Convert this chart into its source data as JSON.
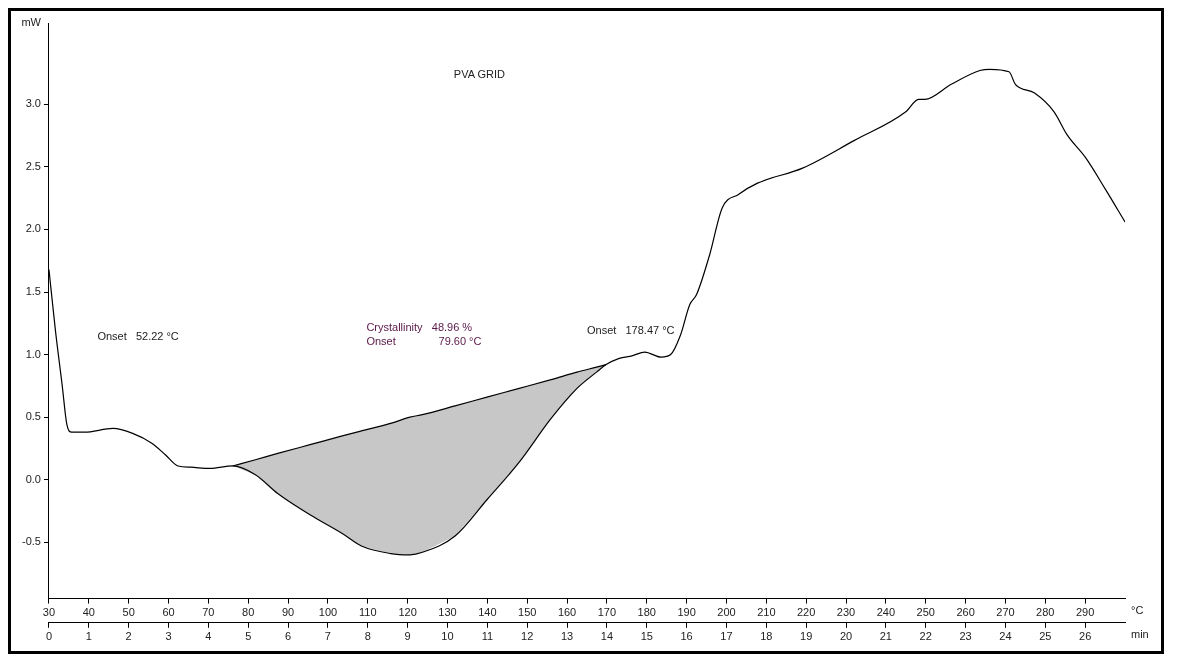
{
  "chart_data": {
    "type": "line",
    "title": "PVA GRID",
    "xlabel": "°C",
    "x2label": "min",
    "ylabel": "mW",
    "x": [
      30,
      31.6,
      33.3,
      34.5,
      35.7,
      38.9,
      46.1,
      51,
      55.9,
      59.2,
      62.4,
      65.6,
      70.4,
      76.1,
      81.8,
      87.4,
      95.5,
      103.6,
      108.4,
      115.7,
      120.6,
      123.7,
      131.9,
      139.9,
      148,
      156,
      162.5,
      167.4,
      169.8,
      173.1,
      176.3,
      179.5,
      183.6,
      186,
      188.4,
      190.8,
      192.5,
      195.8,
      198.9,
      203,
      207.8,
      219.1,
      232,
      245,
      248.2,
      249.8,
      256.4,
      263.6,
      266,
      270.9,
      272.5,
      277.3,
      282.2,
      285.4,
      290.2,
      295.1,
      300
    ],
    "series": [
      {
        "color": "#000000",
        "values": [
          1.68,
          1.2,
          0.76,
          0.44,
          0.38,
          0.38,
          0.41,
          0.37,
          0.29,
          0.2,
          0.11,
          0.1,
          0.09,
          0.11,
          0.04,
          -0.11,
          -0.28,
          -0.43,
          -0.53,
          -0.59,
          -0.6,
          -0.58,
          -0.45,
          -0.16,
          0.14,
          0.49,
          0.73,
          0.86,
          0.92,
          0.97,
          0.99,
          1.02,
          0.98,
          1.0,
          1.15,
          1.4,
          1.48,
          1.8,
          2.17,
          2.28,
          2.37,
          2.49,
          2.71,
          2.94,
          3.04,
          3.04,
          3.16,
          3.27,
          3.28,
          3.26,
          3.16,
          3.09,
          2.94,
          2.76,
          2.57,
          2.32,
          2.06
        ]
      },
      {
        "color": "#000000",
        "x": [
          76.1,
          81.8,
          87.4,
          95.5,
          103.6,
          108.4,
          115.7,
          120.6,
          123.7,
          131.9,
          139.9,
          148,
          156,
          162.5,
          167.4,
          169.8
        ],
        "values": [
          0.11,
          0.16,
          0.21,
          0.28,
          0.35,
          0.39,
          0.45,
          0.5,
          0.52,
          0.59,
          0.66,
          0.73,
          0.8,
          0.86,
          0.9,
          0.92
        ],
        "lower": [
          0.11,
          0.04,
          -0.11,
          -0.28,
          -0.43,
          -0.53,
          -0.59,
          -0.6,
          -0.58,
          -0.45,
          -0.16,
          0.14,
          0.49,
          0.73,
          0.86,
          0.92
        ],
        "upper": [
          0.11,
          0.16,
          0.21,
          0.28,
          0.35,
          0.39,
          0.45,
          0.5,
          0.52,
          0.59,
          0.66,
          0.73,
          0.8,
          0.86,
          0.9,
          0.92
        ]
      }
    ],
    "xlim": [
      30,
      300
    ],
    "xticks": [
      30,
      40,
      50,
      60,
      70,
      80,
      90,
      100,
      110,
      120,
      130,
      140,
      150,
      160,
      170,
      180,
      190,
      200,
      210,
      220,
      230,
      240,
      250,
      260,
      270,
      280,
      290
    ],
    "x2lim": [
      0,
      27
    ],
    "x2ticks": [
      0,
      1,
      2,
      3,
      4,
      5,
      6,
      7,
      8,
      9,
      10,
      11,
      12,
      13,
      14,
      15,
      16,
      17,
      18,
      19,
      20,
      21,
      22,
      23,
      24,
      25,
      26
    ],
    "ylim": [
      -0.95,
      3.65
    ],
    "yticks": [
      {
        "value": -0.5,
        "label": "-0.5"
      },
      {
        "value": 0,
        "label": "0.0"
      },
      {
        "value": 0.5,
        "label": "0.5"
      },
      {
        "value": 1,
        "label": "1.0"
      },
      {
        "value": 1.5,
        "label": "1.5"
      },
      {
        "value": 2,
        "label": "2.0"
      },
      {
        "value": 2.5,
        "label": "2.5"
      },
      {
        "value": 3,
        "label": "3.0"
      }
    ],
    "annotations": [
      "Onset   52.22 °C",
      "Crystallinity   48.96 %",
      "Onset              79.60 °C",
      "Onset   178.47 °C"
    ],
    "grid": false,
    "legend": false,
    "marker": "none",
    "line_style": "solid"
  }
}
